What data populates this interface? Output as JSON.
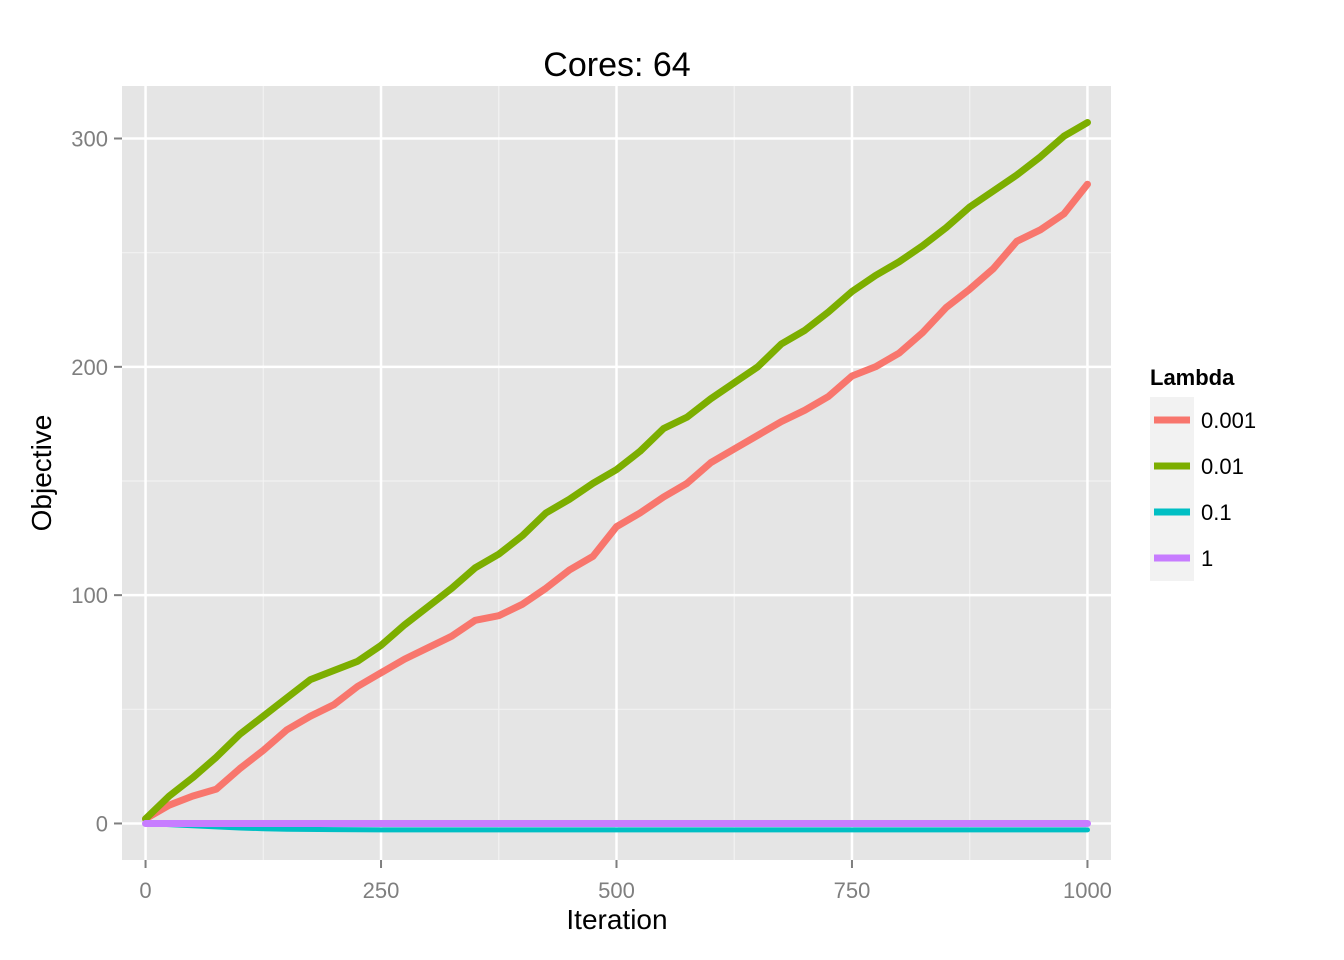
{
  "chart_data": {
    "type": "line",
    "title": "Cores: 64",
    "xlabel": "Iteration",
    "ylabel": "Objective",
    "xlim": [
      -25,
      1025
    ],
    "ylim": [
      -16,
      323
    ],
    "x_ticks": [
      0,
      250,
      500,
      750,
      1000
    ],
    "x_tick_labels": [
      "0",
      "250",
      "500",
      "750",
      "1000"
    ],
    "y_ticks": [
      0,
      100,
      200,
      300
    ],
    "y_tick_labels": [
      "0",
      "100",
      "200",
      "300"
    ],
    "grid": true,
    "legend": {
      "title": "Lambda",
      "placement": "right"
    },
    "series": [
      {
        "name": "0.001",
        "color": "#F8766D",
        "x": [
          0,
          25,
          50,
          75,
          100,
          125,
          150,
          175,
          200,
          225,
          250,
          275,
          300,
          325,
          350,
          375,
          400,
          425,
          450,
          475,
          500,
          525,
          550,
          575,
          600,
          625,
          650,
          675,
          700,
          725,
          750,
          775,
          800,
          825,
          850,
          875,
          900,
          925,
          950,
          975,
          1000
        ],
        "y": [
          2,
          8,
          12,
          15,
          24,
          32,
          41,
          47,
          52,
          60,
          66,
          72,
          77,
          82,
          89,
          91,
          96,
          103,
          111,
          117,
          130,
          136,
          143,
          149,
          158,
          164,
          170,
          176,
          181,
          187,
          196,
          200,
          206,
          215,
          226,
          234,
          243,
          255,
          260,
          267,
          280
        ]
      },
      {
        "name": "0.01",
        "color": "#7CAE00",
        "x": [
          0,
          25,
          50,
          75,
          100,
          125,
          150,
          175,
          200,
          225,
          250,
          275,
          300,
          325,
          350,
          375,
          400,
          425,
          450,
          475,
          500,
          525,
          550,
          575,
          600,
          625,
          650,
          675,
          700,
          725,
          750,
          775,
          800,
          825,
          850,
          875,
          900,
          925,
          950,
          975,
          1000
        ],
        "y": [
          2,
          12,
          20,
          29,
          39,
          47,
          55,
          63,
          67,
          71,
          78,
          87,
          95,
          103,
          112,
          118,
          126,
          136,
          142,
          149,
          155,
          163,
          173,
          178,
          186,
          193,
          200,
          210,
          216,
          224,
          233,
          240,
          246,
          253,
          261,
          270,
          277,
          284,
          292,
          301,
          307
        ]
      },
      {
        "name": "0.1",
        "color": "#00BFC4",
        "x": [
          0,
          25,
          50,
          75,
          100,
          125,
          150,
          200,
          250,
          300,
          400,
          500,
          600,
          700,
          800,
          900,
          1000
        ],
        "y": [
          0,
          -0.5,
          -1,
          -1.5,
          -2,
          -2.3,
          -2.5,
          -2.7,
          -2.8,
          -2.8,
          -2.8,
          -2.8,
          -2.8,
          -2.8,
          -2.8,
          -2.8,
          -2.8
        ]
      },
      {
        "name": "1",
        "color": "#C77CFF",
        "x": [
          0,
          1000
        ],
        "y": [
          0,
          0
        ]
      }
    ]
  }
}
